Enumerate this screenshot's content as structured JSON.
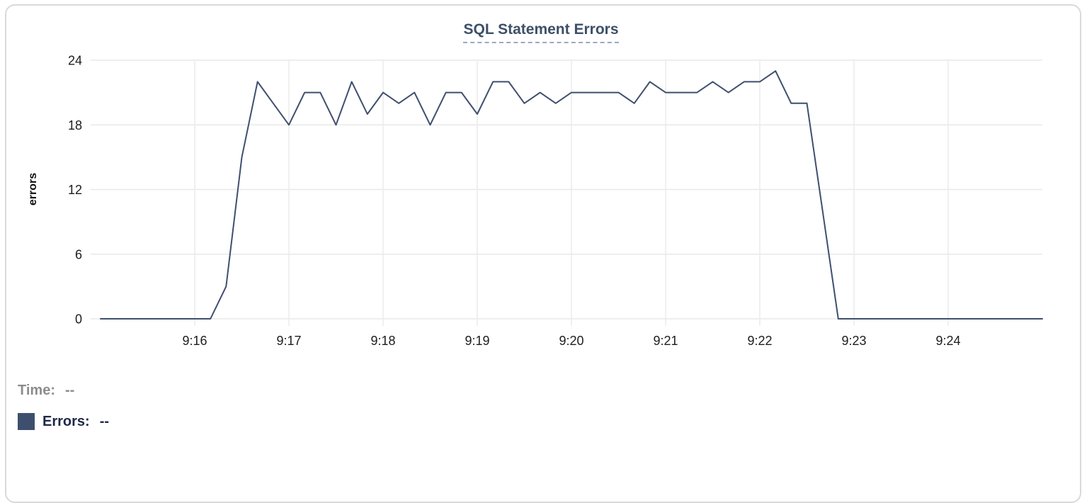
{
  "chart": {
    "title": "SQL Statement Errors",
    "ylabel": "errors"
  },
  "legend": {
    "time_label": "Time:",
    "time_value": "--",
    "errors_label": "Errors:",
    "errors_value": "--",
    "swatch_color": "#3e4f6e"
  },
  "colors": {
    "line": "#3f4f6e",
    "title": "#3d5068",
    "grid": "#e8e8e8",
    "tick_text": "#1d1d1f",
    "time_row": "#8c8c8c",
    "errors_row": "#1f2849",
    "card_border": "#d9d9d9"
  },
  "chart_data": {
    "type": "line",
    "title": "SQL Statement Errors",
    "xlabel": "",
    "ylabel": "errors",
    "ylim": [
      0,
      24
    ],
    "y_ticks": [
      0,
      6,
      12,
      18,
      24
    ],
    "x_tick_labels": [
      "9:16",
      "9:17",
      "9:18",
      "9:19",
      "9:20",
      "9:21",
      "9:22",
      "9:23",
      "9:24"
    ],
    "xlim": [
      "9:15:00",
      "9:25:00"
    ],
    "grid": true,
    "legend_position": "bottom-left",
    "line_color": "#3f4f6e",
    "x": [
      "9:15:00",
      "9:15:10",
      "9:15:20",
      "9:15:30",
      "9:15:40",
      "9:15:50",
      "9:16:00",
      "9:16:10",
      "9:16:20",
      "9:16:30",
      "9:16:40",
      "9:16:50",
      "9:17:00",
      "9:17:10",
      "9:17:20",
      "9:17:30",
      "9:17:40",
      "9:17:50",
      "9:18:00",
      "9:18:10",
      "9:18:20",
      "9:18:30",
      "9:18:40",
      "9:18:50",
      "9:19:00",
      "9:19:10",
      "9:19:20",
      "9:19:30",
      "9:19:40",
      "9:19:50",
      "9:20:00",
      "9:20:10",
      "9:20:20",
      "9:20:30",
      "9:20:40",
      "9:20:50",
      "9:21:00",
      "9:21:10",
      "9:21:20",
      "9:21:30",
      "9:21:40",
      "9:21:50",
      "9:22:00",
      "9:22:10",
      "9:22:20",
      "9:22:30",
      "9:22:40",
      "9:22:50",
      "9:23:00",
      "9:23:10",
      "9:23:20",
      "9:23:30",
      "9:23:40",
      "9:23:50",
      "9:24:00",
      "9:24:10",
      "9:24:20",
      "9:24:30",
      "9:24:40",
      "9:24:50",
      "9:25:00"
    ],
    "series": [
      {
        "name": "Errors",
        "values": [
          0,
          0,
          0,
          0,
          0,
          0,
          0,
          0,
          3,
          15,
          22,
          20,
          18,
          21,
          21,
          18,
          22,
          19,
          21,
          20,
          21,
          18,
          21,
          21,
          19,
          22,
          22,
          20,
          21,
          20,
          21,
          21,
          21,
          21,
          20,
          22,
          21,
          21,
          21,
          22,
          21,
          22,
          22,
          23,
          20,
          20,
          10,
          0,
          0,
          0,
          0,
          0,
          0,
          0,
          0,
          0,
          0,
          0,
          0,
          0,
          0
        ]
      }
    ]
  }
}
